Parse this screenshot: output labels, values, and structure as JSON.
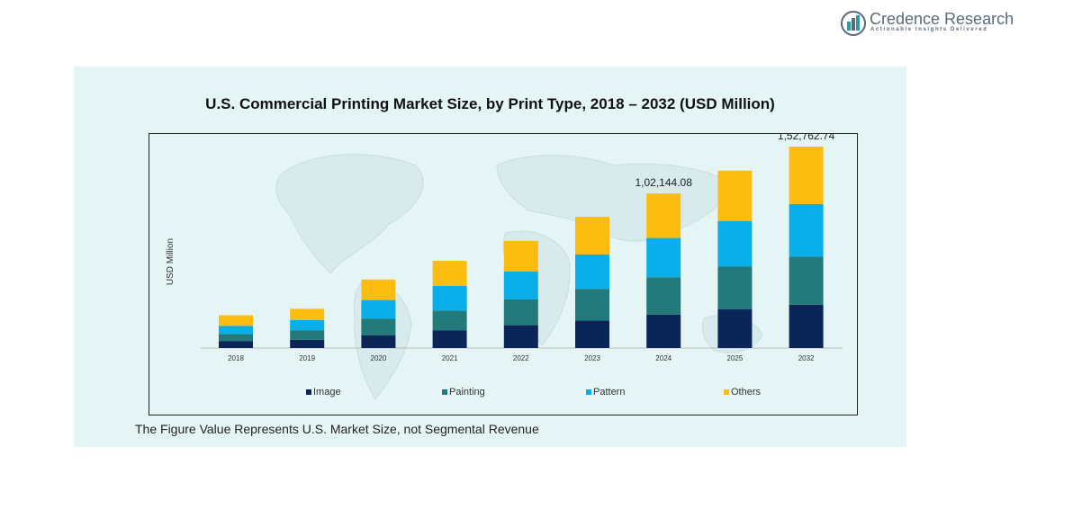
{
  "brand": {
    "name": "Credence Research",
    "tagline": "Actionable Insights Delivered"
  },
  "footnote": "The Figure Value Represents U.S. Market Size, not Segmental Revenue",
  "colors": {
    "Image": "#0c2557",
    "Painting": "#227a7a",
    "Pattern": "#0aaee8",
    "Others": "#fdbd10",
    "panel_bg": "#e5f5f6"
  },
  "chart_data": {
    "type": "bar",
    "stacked": true,
    "title": "U.S. Commercial  Printing Market Size, by Print Type, 2018 – 2032 (USD Million)",
    "xlabel": "",
    "ylabel": "USD Million",
    "ylim": [
      0,
      172000
    ],
    "grid": false,
    "legend_position": "bottom",
    "categories": [
      "2018",
      "2019",
      "2020",
      "2021",
      "2022",
      "2023",
      "2024",
      "2025",
      "2032"
    ],
    "series": [
      {
        "name": "Image",
        "values": [
          6000,
          7000,
          11000,
          15000,
          19500,
          23500,
          28500,
          33000,
          37000
        ]
      },
      {
        "name": "Painting",
        "values": [
          6000,
          8000,
          14000,
          17000,
          22000,
          27000,
          32000,
          36500,
          41000
        ]
      },
      {
        "name": "Pattern",
        "values": [
          7000,
          9000,
          16000,
          21000,
          24000,
          29500,
          33500,
          39000,
          45000
        ]
      },
      {
        "name": "Others",
        "values": [
          9000,
          9500,
          17500,
          21500,
          26000,
          32000,
          38000,
          43000,
          49000
        ]
      }
    ],
    "data_labels": [
      {
        "category": "2024",
        "text": "1,02,144.08"
      },
      {
        "category": "2032",
        "text": "1,52,762.74"
      }
    ]
  }
}
